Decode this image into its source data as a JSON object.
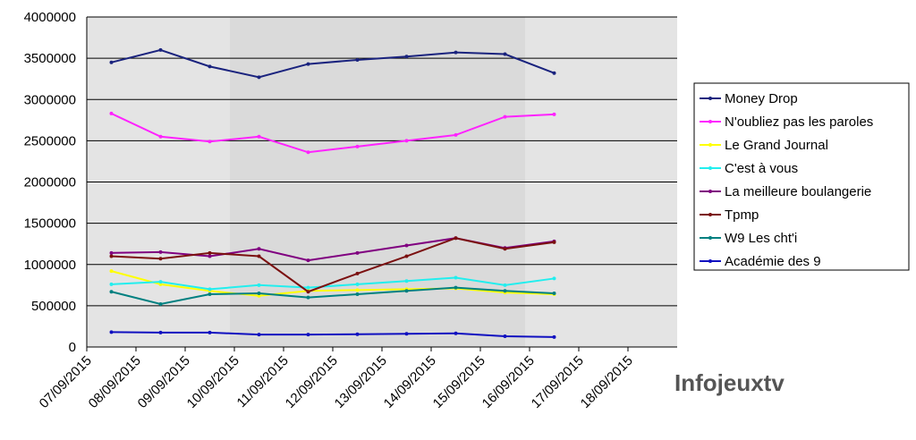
{
  "chart_data": {
    "type": "line",
    "categories": [
      "07/09/2015",
      "08/09/2015",
      "09/09/2015",
      "10/09/2015",
      "11/09/2015",
      "12/09/2015",
      "13/09/2015",
      "14/09/2015",
      "15/09/2015",
      "16/09/2015",
      "17/09/2015",
      "18/09/2015"
    ],
    "series": [
      {
        "name": "Money Drop",
        "color": "#1a237e",
        "values": [
          3450000,
          3600000,
          3400000,
          3270000,
          3430000,
          3480000,
          3520000,
          3570000,
          3550000,
          3320000,
          null,
          null
        ]
      },
      {
        "name": "N'oubliez pas les paroles",
        "color": "#ff22ff",
        "values": [
          2830000,
          2550000,
          2490000,
          2550000,
          2360000,
          2430000,
          2500000,
          2570000,
          2790000,
          2820000,
          null,
          null
        ]
      },
      {
        "name": "Le Grand Journal",
        "color": "#ffff00",
        "values": [
          920000,
          760000,
          680000,
          620000,
          680000,
          690000,
          700000,
          710000,
          660000,
          640000,
          null,
          null
        ]
      },
      {
        "name": "C'est à vous",
        "color": "#22eeee",
        "values": [
          760000,
          790000,
          700000,
          750000,
          720000,
          760000,
          800000,
          840000,
          750000,
          830000,
          null,
          null
        ]
      },
      {
        "name": "La meilleure boulangerie",
        "color": "#800080",
        "values": [
          1140000,
          1150000,
          1100000,
          1190000,
          1050000,
          1140000,
          1230000,
          1320000,
          1200000,
          1280000,
          null,
          null
        ]
      },
      {
        "name": "Tpmp",
        "color": "#7b1010",
        "values": [
          1100000,
          1070000,
          1140000,
          1100000,
          670000,
          890000,
          1100000,
          1320000,
          1190000,
          1270000,
          null,
          null
        ]
      },
      {
        "name": "W9 Les cht'i",
        "color": "#008080",
        "values": [
          670000,
          520000,
          640000,
          650000,
          600000,
          640000,
          680000,
          720000,
          680000,
          650000,
          null,
          null
        ]
      },
      {
        "name": "Académie des 9",
        "color": "#1010c0",
        "values": [
          180000,
          175000,
          175000,
          150000,
          150000,
          155000,
          160000,
          165000,
          130000,
          120000,
          null,
          null
        ]
      }
    ],
    "ylim": [
      0,
      4000000
    ],
    "yticks": [
      0,
      500000,
      1000000,
      1500000,
      2000000,
      2500000,
      3000000,
      3500000,
      4000000
    ],
    "grid": true,
    "watermark": "Infojeuxtv"
  }
}
